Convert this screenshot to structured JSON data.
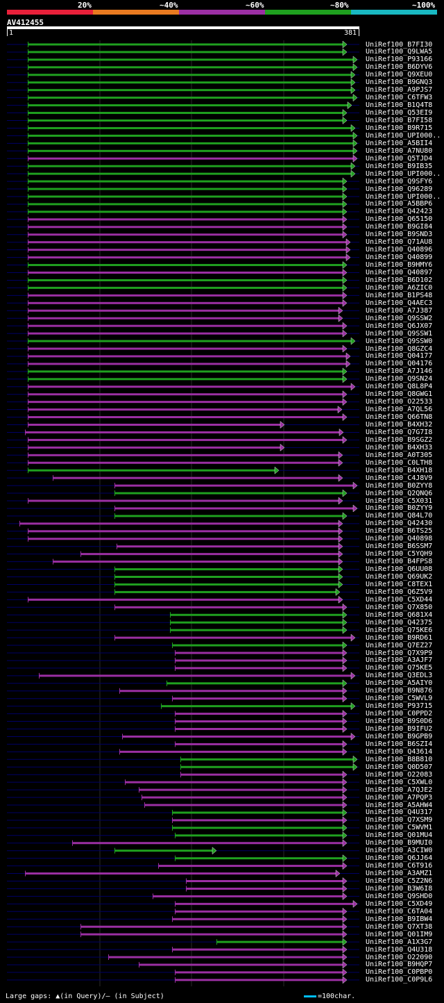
{
  "legend": {
    "items": [
      {
        "label": "20%",
        "color": "#e8203a"
      },
      {
        "label": "~40%",
        "color": "#e87a20"
      },
      {
        "label": "~60%",
        "color": "#9b2fa3"
      },
      {
        "label": "~80%",
        "color": "#1fa01f"
      },
      {
        "label": "~100%",
        "color": "#19b8c2"
      }
    ]
  },
  "query": {
    "name": "AV412455",
    "start": "1",
    "end": "381"
  },
  "hits": [
    {
      "label": "UniRef100_B7FI30",
      "color": "g",
      "s": 40,
      "e": 500
    },
    {
      "label": "UniRef100_Q9LWA5",
      "color": "g",
      "s": 40,
      "e": 500
    },
    {
      "label": "UniRef100_P93166",
      "color": "g",
      "s": 40,
      "e": 515
    },
    {
      "label": "UniRef100_B6DYV6",
      "color": "g",
      "s": 40,
      "e": 515
    },
    {
      "label": "UniRef100_Q9XEU0",
      "color": "g",
      "s": 40,
      "e": 512
    },
    {
      "label": "UniRef100_B9GNQ3",
      "color": "g",
      "s": 40,
      "e": 512
    },
    {
      "label": "UniRef100_A9PJS7",
      "color": "g",
      "s": 40,
      "e": 512
    },
    {
      "label": "UniRef100_C6TFW3",
      "color": "g",
      "s": 40,
      "e": 515
    },
    {
      "label": "UniRef100_B1Q4T8",
      "color": "g",
      "s": 40,
      "e": 507
    },
    {
      "label": "UniRef100_Q53EI9",
      "color": "g",
      "s": 40,
      "e": 500
    },
    {
      "label": "UniRef100_B7FI58",
      "color": "g",
      "s": 40,
      "e": 500
    },
    {
      "label": "UniRef100_B9R715",
      "color": "g",
      "s": 40,
      "e": 512
    },
    {
      "label": "UniRef100_UPI000..",
      "color": "g",
      "s": 40,
      "e": 515
    },
    {
      "label": "UniRef100_A5BII4",
      "color": "g",
      "s": 40,
      "e": 515
    },
    {
      "label": "UniRef100_A7NU80",
      "color": "g",
      "s": 40,
      "e": 515
    },
    {
      "label": "UniRef100_Q5TJD4",
      "color": "p",
      "s": 40,
      "e": 515
    },
    {
      "label": "UniRef100_B9IB35",
      "color": "g",
      "s": 40,
      "e": 512
    },
    {
      "label": "UniRef100_UPI000..",
      "color": "g",
      "s": 40,
      "e": 512
    },
    {
      "label": "UniRef100_Q9SFY6",
      "color": "g",
      "s": 40,
      "e": 500
    },
    {
      "label": "UniRef100_Q96289",
      "color": "g",
      "s": 40,
      "e": 500
    },
    {
      "label": "UniRef100_UPI000..",
      "color": "g",
      "s": 40,
      "e": 500
    },
    {
      "label": "UniRef100_A5BBP6",
      "color": "g",
      "s": 40,
      "e": 500
    },
    {
      "label": "UniRef100_Q42423",
      "color": "g",
      "s": 40,
      "e": 500
    },
    {
      "label": "UniRef100_Q65150",
      "color": "p",
      "s": 40,
      "e": 500
    },
    {
      "label": "UniRef100_B9GI84",
      "color": "p",
      "s": 40,
      "e": 500
    },
    {
      "label": "UniRef100_B9SND3",
      "color": "p",
      "s": 40,
      "e": 500
    },
    {
      "label": "UniRef100_Q71AU8",
      "color": "p",
      "s": 40,
      "e": 505
    },
    {
      "label": "UniRef100_Q40896",
      "color": "p",
      "s": 40,
      "e": 505
    },
    {
      "label": "UniRef100_Q40899",
      "color": "p",
      "s": 40,
      "e": 505
    },
    {
      "label": "UniRef100_B9HMY6",
      "color": "g",
      "s": 40,
      "e": 500
    },
    {
      "label": "UniRef100_Q40897",
      "color": "p",
      "s": 40,
      "e": 500
    },
    {
      "label": "UniRef100_B6D102",
      "color": "g",
      "s": 40,
      "e": 500
    },
    {
      "label": "UniRef100_A6ZIC0",
      "color": "g",
      "s": 40,
      "e": 500
    },
    {
      "label": "UniRef100_B1PS48",
      "color": "p",
      "s": 40,
      "e": 500
    },
    {
      "label": "UniRef100_Q4AEC3",
      "color": "p",
      "s": 40,
      "e": 500
    },
    {
      "label": "UniRef100_A7J387",
      "color": "p",
      "s": 40,
      "e": 494
    },
    {
      "label": "UniRef100_Q9SSW2",
      "color": "p",
      "s": 40,
      "e": 494
    },
    {
      "label": "UniRef100_Q6JX07",
      "color": "p",
      "s": 40,
      "e": 500
    },
    {
      "label": "UniRef100_Q9SSW1",
      "color": "p",
      "s": 40,
      "e": 500
    },
    {
      "label": "UniRef100_Q9SSW0",
      "color": "g",
      "s": 40,
      "e": 512
    },
    {
      "label": "UniRef100_Q8GZC4",
      "color": "p",
      "s": 40,
      "e": 500
    },
    {
      "label": "UniRef100_Q04177",
      "color": "p",
      "s": 40,
      "e": 505
    },
    {
      "label": "UniRef100_Q04176",
      "color": "p",
      "s": 40,
      "e": 505
    },
    {
      "label": "UniRef100_A7J146",
      "color": "g",
      "s": 40,
      "e": 500
    },
    {
      "label": "UniRef100_Q9SN24",
      "color": "g",
      "s": 40,
      "e": 500
    },
    {
      "label": "UniRef100_Q8L8P4",
      "color": "p",
      "s": 40,
      "e": 512
    },
    {
      "label": "UniRef100_Q8GWG1",
      "color": "p",
      "s": 40,
      "e": 500
    },
    {
      "label": "UniRef100_O22533",
      "color": "p",
      "s": 40,
      "e": 500
    },
    {
      "label": "UniRef100_A7QL56",
      "color": "p",
      "s": 40,
      "e": 493
    },
    {
      "label": "UniRef100_Q66TN8",
      "color": "p",
      "s": 40,
      "e": 500
    },
    {
      "label": "UniRef100_B4XH32",
      "color": "p",
      "s": 40,
      "e": 410
    },
    {
      "label": "UniRef100_Q7G7I8",
      "color": "p",
      "s": 36,
      "e": 495
    },
    {
      "label": "UniRef100_B9SGZ2",
      "color": "p",
      "s": 40,
      "e": 500
    },
    {
      "label": "UniRef100_B4XH33",
      "color": "p",
      "s": 40,
      "e": 410
    },
    {
      "label": "UniRef100_A0T305",
      "color": "p",
      "s": 40,
      "e": 494
    },
    {
      "label": "UniRef100_C0LTH8",
      "color": "p",
      "s": 40,
      "e": 494
    },
    {
      "label": "UniRef100_B4XH18",
      "color": "g",
      "s": 40,
      "e": 402
    },
    {
      "label": "UniRef100_C4J8V9",
      "color": "p",
      "s": 76,
      "e": 494
    },
    {
      "label": "UniRef100_B0ZYY8",
      "color": "p",
      "s": 165,
      "e": 515
    },
    {
      "label": "UniRef100_Q2QNQ6",
      "color": "g",
      "s": 165,
      "e": 500
    },
    {
      "label": "UniRef100_C5X031",
      "color": "p",
      "s": 40,
      "e": 494
    },
    {
      "label": "UniRef100_B0ZYY9",
      "color": "p",
      "s": 165,
      "e": 515
    },
    {
      "label": "UniRef100_Q84L70",
      "color": "g",
      "s": 165,
      "e": 500
    },
    {
      "label": "UniRef100_Q42430",
      "color": "p",
      "s": 28,
      "e": 494
    },
    {
      "label": "UniRef100_B6TS25",
      "color": "p",
      "s": 40,
      "e": 494
    },
    {
      "label": "UniRef100_Q40898",
      "color": "p",
      "s": 40,
      "e": 494
    },
    {
      "label": "UniRef100_B6SSM7",
      "color": "p",
      "s": 168,
      "e": 494
    },
    {
      "label": "UniRef100_C5YQH9",
      "color": "p",
      "s": 116,
      "e": 494
    },
    {
      "label": "UniRef100_B4FPS8",
      "color": "p",
      "s": 76,
      "e": 494
    },
    {
      "label": "UniRef100_Q6UU08",
      "color": "g",
      "s": 165,
      "e": 494
    },
    {
      "label": "UniRef100_Q69UK2",
      "color": "g",
      "s": 165,
      "e": 494
    },
    {
      "label": "UniRef100_C8TEX1",
      "color": "g",
      "s": 165,
      "e": 494
    },
    {
      "label": "UniRef100_Q6Z5V9",
      "color": "g",
      "s": 165,
      "e": 490
    },
    {
      "label": "UniRef100_C5XD44",
      "color": "p",
      "s": 40,
      "e": 494
    },
    {
      "label": "UniRef100_Q7X850",
      "color": "p",
      "s": 165,
      "e": 500
    },
    {
      "label": "UniRef100_Q681X4",
      "color": "g",
      "s": 245,
      "e": 500
    },
    {
      "label": "UniRef100_Q42375",
      "color": "g",
      "s": 245,
      "e": 500
    },
    {
      "label": "UniRef100_Q75KE6",
      "color": "g",
      "s": 245,
      "e": 500
    },
    {
      "label": "UniRef100_B9RD61",
      "color": "p",
      "s": 165,
      "e": 512
    },
    {
      "label": "UniRef100_Q7EZ27",
      "color": "g",
      "s": 248,
      "e": 500
    },
    {
      "label": "UniRef100_Q7X9P9",
      "color": "p",
      "s": 252,
      "e": 500
    },
    {
      "label": "UniRef100_A3AJF7",
      "color": "p",
      "s": 252,
      "e": 500
    },
    {
      "label": "UniRef100_Q75KE5",
      "color": "p",
      "s": 252,
      "e": 500
    },
    {
      "label": "UniRef100_Q3EDL3",
      "color": "p",
      "s": 56,
      "e": 512
    },
    {
      "label": "UniRef100_A5AIY0",
      "color": "g",
      "s": 240,
      "e": 500
    },
    {
      "label": "UniRef100_B9N876",
      "color": "p",
      "s": 172,
      "e": 500
    },
    {
      "label": "UniRef100_C5WVL9",
      "color": "p",
      "s": 248,
      "e": 500
    },
    {
      "label": "UniRef100_P93715",
      "color": "g",
      "s": 232,
      "e": 512
    },
    {
      "label": "UniRef100_C0PPD2",
      "color": "p",
      "s": 252,
      "e": 500
    },
    {
      "label": "UniRef100_B9S0D6",
      "color": "p",
      "s": 252,
      "e": 500
    },
    {
      "label": "UniRef100_B9IFU2",
      "color": "p",
      "s": 252,
      "e": 500
    },
    {
      "label": "UniRef100_B9GPB9",
      "color": "p",
      "s": 176,
      "e": 512
    },
    {
      "label": "UniRef100_B6SZI4",
      "color": "p",
      "s": 252,
      "e": 500
    },
    {
      "label": "UniRef100_Q43614",
      "color": "p",
      "s": 172,
      "e": 500
    },
    {
      "label": "UniRef100_B8B810",
      "color": "g",
      "s": 260,
      "e": 515
    },
    {
      "label": "UniRef100_Q0D507",
      "color": "g",
      "s": 260,
      "e": 515
    },
    {
      "label": "UniRef100_O22083",
      "color": "p",
      "s": 260,
      "e": 500
    },
    {
      "label": "UniRef100_C5XWL0",
      "color": "p",
      "s": 180,
      "e": 500
    },
    {
      "label": "UniRef100_A7QJE2",
      "color": "p",
      "s": 200,
      "e": 500
    },
    {
      "label": "UniRef100_A7PQP3",
      "color": "p",
      "s": 204,
      "e": 500
    },
    {
      "label": "UniRef100_A5AHW4",
      "color": "p",
      "s": 208,
      "e": 500
    },
    {
      "label": "UniRef100_Q4U317",
      "color": "g",
      "s": 248,
      "e": 500
    },
    {
      "label": "UniRef100_Q7XSM9",
      "color": "p",
      "s": 248,
      "e": 500
    },
    {
      "label": "UniRef100_C5WVM1",
      "color": "g",
      "s": 248,
      "e": 500
    },
    {
      "label": "UniRef100_Q01MU4",
      "color": "g",
      "s": 252,
      "e": 500
    },
    {
      "label": "UniRef100_B9MUI0",
      "color": "p",
      "s": 104,
      "e": 500
    },
    {
      "label": "UniRef100_A3CIW0",
      "color": "g",
      "s": 165,
      "e": 312
    },
    {
      "label": "UniRef100_Q6JJ64",
      "color": "g",
      "s": 252,
      "e": 500
    },
    {
      "label": "UniRef100_C6T916",
      "color": "p",
      "s": 228,
      "e": 500
    },
    {
      "label": "UniRef100_A3AMZ1",
      "color": "p",
      "s": 36,
      "e": 490
    },
    {
      "label": "UniRef100_C5Z2N6",
      "color": "p",
      "s": 268,
      "e": 500
    },
    {
      "label": "UniRef100_B3W6I8",
      "color": "p",
      "s": 268,
      "e": 500
    },
    {
      "label": "UniRef100_Q9SHD0",
      "color": "p",
      "s": 220,
      "e": 500
    },
    {
      "label": "UniRef100_C5XD49",
      "color": "p",
      "s": 252,
      "e": 515
    },
    {
      "label": "UniRef100_C6TA04",
      "color": "p",
      "s": 252,
      "e": 500
    },
    {
      "label": "UniRef100_B9IBW4",
      "color": "p",
      "s": 248,
      "e": 500
    },
    {
      "label": "UniRef100_Q7XT38",
      "color": "p",
      "s": 116,
      "e": 500
    },
    {
      "label": "UniRef100_Q01IM9",
      "color": "p",
      "s": 116,
      "e": 500
    },
    {
      "label": "UniRef100_A1X3G7",
      "color": "g",
      "s": 312,
      "e": 500
    },
    {
      "label": "UniRef100_Q4U318",
      "color": "p",
      "s": 248,
      "e": 500
    },
    {
      "label": "UniRef100_O22090",
      "color": "p",
      "s": 156,
      "e": 500
    },
    {
      "label": "UniRef100_B9HQP7",
      "color": "p",
      "s": 200,
      "e": 500
    },
    {
      "label": "UniRef100_C0PBP0",
      "color": "p",
      "s": 252,
      "e": 500
    },
    {
      "label": "UniRef100_C0P9L6",
      "color": "p",
      "s": 252,
      "e": 500
    }
  ],
  "colors": {
    "g": "#1fa01f",
    "p": "#9b2fa3",
    "query_line": "#000066"
  },
  "footer": {
    "gaps_text": "Large gaps: ▲(in Query)/– (in Subject)",
    "scale_text": "=100char."
  }
}
